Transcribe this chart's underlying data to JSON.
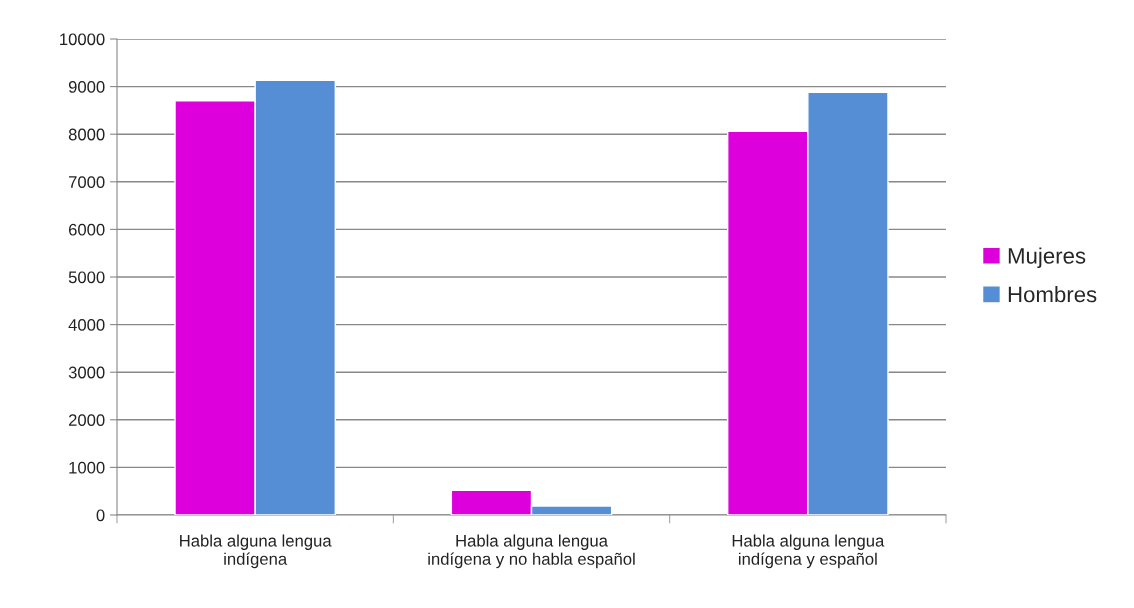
{
  "chart_data": {
    "type": "bar",
    "categories": [
      "Habla alguna lengua\nindígena",
      "Habla alguna lengua\nindígena y no habla español",
      "Habla alguna lengua\nindígena y español"
    ],
    "series": [
      {
        "name": "Mujeres",
        "color": "#dd00dd",
        "values": [
          8700,
          520,
          8060
        ]
      },
      {
        "name": "Hombres",
        "color": "#558ed5",
        "values": [
          9130,
          190,
          8880
        ]
      }
    ],
    "ylim": [
      0,
      10000
    ],
    "yticks": [
      0,
      1000,
      2000,
      3000,
      4000,
      5000,
      6000,
      7000,
      8000,
      9000,
      10000
    ],
    "grid": "y",
    "legend": "right"
  }
}
